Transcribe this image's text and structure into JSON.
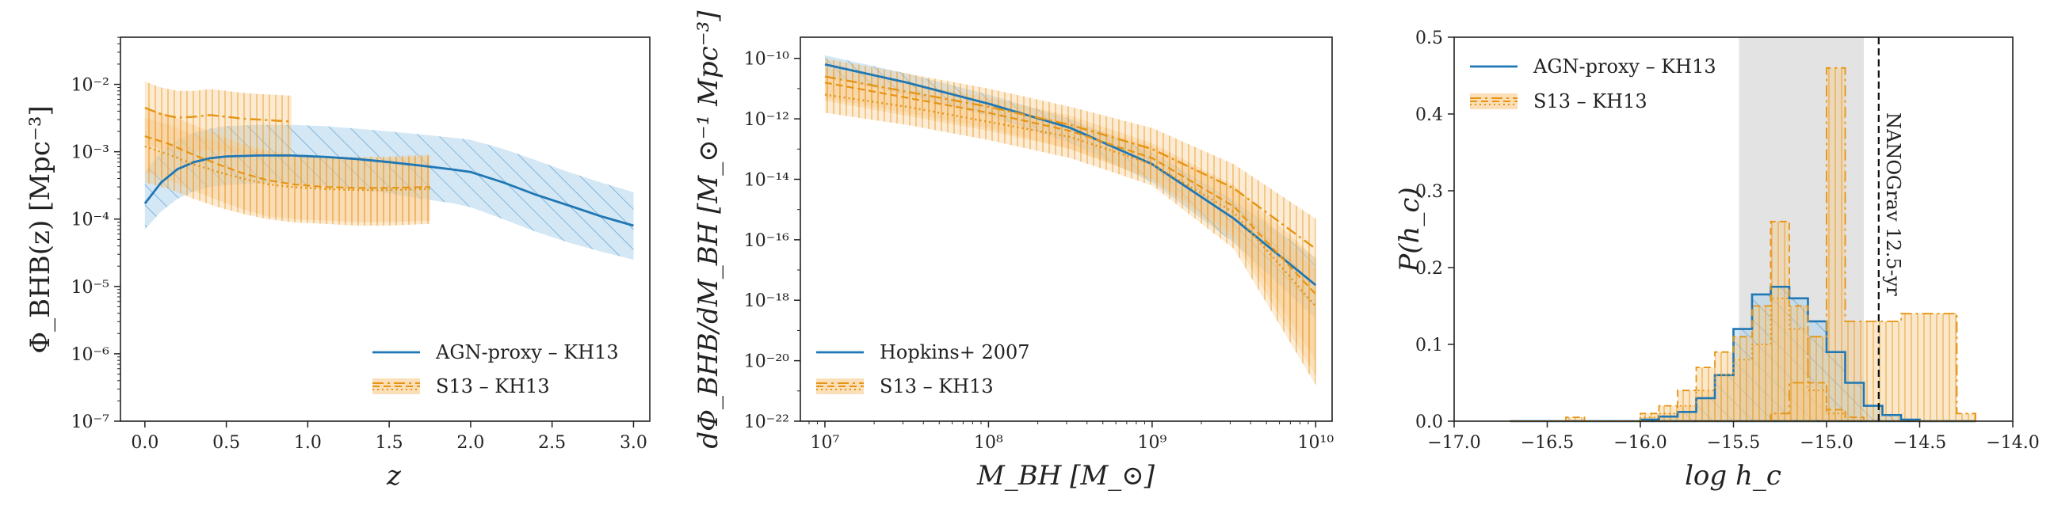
{
  "colors": {
    "agn": "#1f77b4",
    "agn_fill": "#aed3ec",
    "s13": "#e69412",
    "s13_fill": "#f7c98a",
    "grey": "#c8c8c8"
  },
  "chart_data": [
    {
      "type": "line",
      "xlabel": "z",
      "ylabel": "Φ_BHB(z) [Mpc⁻³]",
      "xlim": [
        -0.15,
        3.1
      ],
      "ylim_log10": [
        -7,
        -1.3
      ],
      "yscale": "log",
      "xticks": [
        "0.0",
        "0.5",
        "1.0",
        "1.5",
        "2.0",
        "2.5",
        "3.0"
      ],
      "yticks": [
        "10⁻⁷",
        "10⁻⁶",
        "10⁻⁵",
        "10⁻⁴",
        "10⁻³",
        "10⁻²"
      ],
      "legend_position": "lower right",
      "series": [
        {
          "name": "AGN-proxy – KH13",
          "style": "solid",
          "x": [
            0.0,
            0.1,
            0.2,
            0.3,
            0.4,
            0.5,
            0.7,
            0.9,
            1.1,
            1.3,
            1.5,
            1.7,
            1.9,
            2.0,
            2.2,
            2.4,
            2.6,
            2.8,
            3.0
          ],
          "y": [
            0.00017,
            0.00035,
            0.00055,
            0.0007,
            0.0008,
            0.00085,
            0.00088,
            0.00088,
            0.00084,
            0.00078,
            0.0007,
            0.00062,
            0.00054,
            0.0005,
            0.00035,
            0.00023,
            0.00016,
            0.00011,
            8e-05
          ],
          "lower": [
            7e-05,
            0.00013,
            0.0002,
            0.00026,
            0.0003,
            0.00032,
            0.00034,
            0.00034,
            0.00031,
            0.00028,
            0.00024,
            0.0002,
            0.00017,
            0.00015,
            0.0001,
            6.5e-05,
            4.5e-05,
            3.3e-05,
            2.5e-05
          ],
          "upper": [
            0.0005,
            0.001,
            0.0015,
            0.0019,
            0.0022,
            0.0024,
            0.0025,
            0.0025,
            0.0024,
            0.0022,
            0.002,
            0.0018,
            0.0016,
            0.0015,
            0.0011,
            0.00075,
            0.0005,
            0.00035,
            0.00025
          ]
        },
        {
          "name": "S13 – KH13",
          "style": "dashdot",
          "x": [
            0.0,
            0.1,
            0.2,
            0.3,
            0.4,
            0.5,
            0.6,
            0.7,
            0.8,
            0.9
          ],
          "y": [
            0.0045,
            0.0036,
            0.0032,
            0.0033,
            0.0035,
            0.0033,
            0.0031,
            0.003,
            0.0029,
            0.0028
          ],
          "lower": [
            0.0013,
            0.0011,
            0.001,
            0.001,
            0.00105,
            0.001,
            0.00095,
            0.0009,
            0.00085,
            0.0008
          ],
          "upper": [
            0.011,
            0.009,
            0.008,
            0.008,
            0.0085,
            0.008,
            0.0075,
            0.0072,
            0.007,
            0.0068
          ]
        },
        {
          "name": "",
          "style": "dashed",
          "x": [
            0.0,
            0.15,
            0.3,
            0.45,
            0.6,
            0.75,
            0.9,
            1.1,
            1.3,
            1.5,
            1.75
          ],
          "y": [
            0.0017,
            0.0013,
            0.0009,
            0.00065,
            0.00048,
            0.00038,
            0.00033,
            0.0003,
            0.00029,
            0.00029,
            0.0003
          ],
          "lower": [
            0.0005,
            0.00038,
            0.00026,
            0.00019,
            0.00014,
            0.00011,
            0.0001,
            9.5e-05,
            9e-05,
            9e-05,
            9.5e-05
          ],
          "upper": [
            0.0045,
            0.0035,
            0.0025,
            0.0018,
            0.0013,
            0.00105,
            0.00092,
            0.00085,
            0.00083,
            0.00085,
            0.0009
          ]
        },
        {
          "name": "",
          "style": "dotted",
          "x": [
            0.0,
            0.15,
            0.3,
            0.45,
            0.6,
            0.75,
            0.9,
            1.1,
            1.3,
            1.5,
            1.75
          ],
          "y": [
            0.0012,
            0.0009,
            0.00065,
            0.0005,
            0.0004,
            0.00033,
            0.0003,
            0.00028,
            0.00027,
            0.00027,
            0.00028
          ],
          "lower": [
            0.00035,
            0.00028,
            0.0002,
            0.00015,
            0.00012,
            0.0001,
            9e-05,
            8.5e-05,
            8e-05,
            8e-05,
            8.5e-05
          ],
          "upper": [
            0.0032,
            0.0025,
            0.0018,
            0.0014,
            0.0011,
            0.00095,
            0.00085,
            0.0008,
            0.00078,
            0.0008,
            0.00085
          ]
        }
      ]
    },
    {
      "type": "line",
      "xlabel": "M_BH [M_⊙]",
      "ylabel": "dΦ_BHB/dM_BH [M_⊙⁻¹ Mpc⁻³]",
      "xscale": "log",
      "yscale": "log",
      "xlim_log10": [
        6.85,
        10.1
      ],
      "ylim_log10": [
        -22,
        -9.3
      ],
      "xticks": [
        "10⁷",
        "10⁸",
        "10⁹",
        "10¹⁰"
      ],
      "yticks": [
        "10⁻²²",
        "10⁻²⁰",
        "10⁻¹⁸",
        "10⁻¹⁶",
        "10⁻¹⁴",
        "10⁻¹²",
        "10⁻¹⁰"
      ],
      "legend_position": "lower left",
      "series": [
        {
          "name": "Hopkins+ 2007",
          "style": "solid",
          "x_log10": [
            7.0,
            7.5,
            8.0,
            8.5,
            9.0,
            9.5,
            10.0
          ],
          "y_log10": [
            -10.2,
            -10.8,
            -11.5,
            -12.3,
            -13.5,
            -15.3,
            -17.5
          ],
          "lower_log10": [
            -10.6,
            -11.2,
            -11.9,
            -12.8,
            -14.1,
            -16.1,
            -18.6
          ],
          "upper_log10": [
            -9.9,
            -10.5,
            -11.2,
            -12.0,
            -13.1,
            -14.7,
            -16.6
          ]
        },
        {
          "name": "S13 – KH13",
          "style": "dashdot",
          "x_log10": [
            7.0,
            7.5,
            8.0,
            8.5,
            9.0,
            9.5,
            10.0
          ],
          "y_log10": [
            -10.6,
            -11.1,
            -11.6,
            -12.2,
            -13.0,
            -14.3,
            -16.3
          ],
          "lower_log10": [
            -11.3,
            -11.8,
            -12.3,
            -13.0,
            -14.0,
            -15.8,
            -20.0
          ],
          "upper_log10": [
            -10.0,
            -10.5,
            -11.0,
            -11.6,
            -12.3,
            -13.5,
            -15.3
          ]
        },
        {
          "name": "",
          "style": "dashed",
          "x_log10": [
            7.0,
            7.5,
            8.0,
            8.5,
            9.0,
            9.5,
            10.0
          ],
          "y_log10": [
            -10.8,
            -11.3,
            -11.8,
            -12.4,
            -13.3,
            -14.9,
            -17.8
          ],
          "lower_log10": [
            -11.4,
            -11.9,
            -12.4,
            -13.0,
            -14.0,
            -16.0,
            -20.5
          ],
          "upper_log10": [
            -10.3,
            -10.8,
            -11.3,
            -11.9,
            -12.8,
            -14.2,
            -16.6
          ]
        },
        {
          "name": "",
          "style": "dotted",
          "x_log10": [
            7.0,
            7.5,
            8.0,
            8.5,
            9.0,
            9.5,
            10.0
          ],
          "y_log10": [
            -11.2,
            -11.6,
            -12.1,
            -12.6,
            -13.5,
            -15.1,
            -18.2
          ],
          "lower_log10": [
            -11.8,
            -12.2,
            -12.7,
            -13.3,
            -14.2,
            -16.3,
            -20.8
          ],
          "upper_log10": [
            -10.6,
            -11.1,
            -11.6,
            -12.1,
            -12.9,
            -14.3,
            -17.0
          ]
        }
      ]
    },
    {
      "type": "bar",
      "xlabel": "log h_c",
      "ylabel": "P(h_c)",
      "xlim": [
        -17.0,
        -14.0
      ],
      "ylim": [
        0,
        0.5
      ],
      "xticks": [
        "−17.0",
        "−16.5",
        "−16.0",
        "−15.5",
        "−15.0",
        "−14.5",
        "−14.0"
      ],
      "yticks": [
        "0.0",
        "0.1",
        "0.2",
        "0.3",
        "0.4",
        "0.5"
      ],
      "legend_position": "upper left",
      "shaded_band": [
        -15.47,
        -14.8
      ],
      "vline": {
        "x": -14.72,
        "label": "NANOGrav 12.5-yr"
      },
      "bin_edges": [
        -16.7,
        -16.6,
        -16.5,
        -16.4,
        -16.3,
        -16.2,
        -16.1,
        -16.0,
        -15.9,
        -15.8,
        -15.7,
        -15.6,
        -15.5,
        -15.4,
        -15.3,
        -15.2,
        -15.1,
        -15.0,
        -14.9,
        -14.8,
        -14.7,
        -14.6,
        -14.5,
        -14.4,
        -14.3,
        -14.2
      ],
      "series": [
        {
          "name": "AGN-proxy – KH13",
          "style": "solid",
          "values": [
            0,
            0,
            0,
            0,
            0,
            0,
            0,
            0.002,
            0.006,
            0.012,
            0.03,
            0.06,
            0.12,
            0.165,
            0.175,
            0.16,
            0.13,
            0.09,
            0.05,
            0.02,
            0.008,
            0.002,
            0,
            0,
            0
          ]
        },
        {
          "name": "S13 – KH13",
          "style": "dashdot",
          "values": [
            0,
            0,
            0,
            0,
            0,
            0,
            0,
            0,
            0,
            0,
            0,
            0,
            0,
            0,
            0.01,
            0.05,
            0.11,
            0.46,
            0.13,
            0.13,
            0.13,
            0.14,
            0.14,
            0.14,
            0.01
          ]
        },
        {
          "name": "",
          "style": "dashed",
          "values": [
            0,
            0,
            0,
            0.005,
            0,
            0,
            0,
            0.01,
            0.02,
            0.04,
            0.07,
            0.09,
            0.11,
            0.15,
            0.26,
            0.15,
            0.05,
            0.015,
            0.005,
            0,
            0,
            0,
            0,
            0,
            0
          ]
        },
        {
          "name": "",
          "style": "dotted",
          "values": [
            0,
            0,
            0,
            0,
            0,
            0,
            0,
            0.005,
            0.01,
            0.02,
            0.04,
            0.06,
            0.08,
            0.1,
            0.16,
            0.12,
            0.04,
            0.01,
            0,
            0,
            0,
            0,
            0,
            0,
            0
          ]
        }
      ]
    }
  ]
}
